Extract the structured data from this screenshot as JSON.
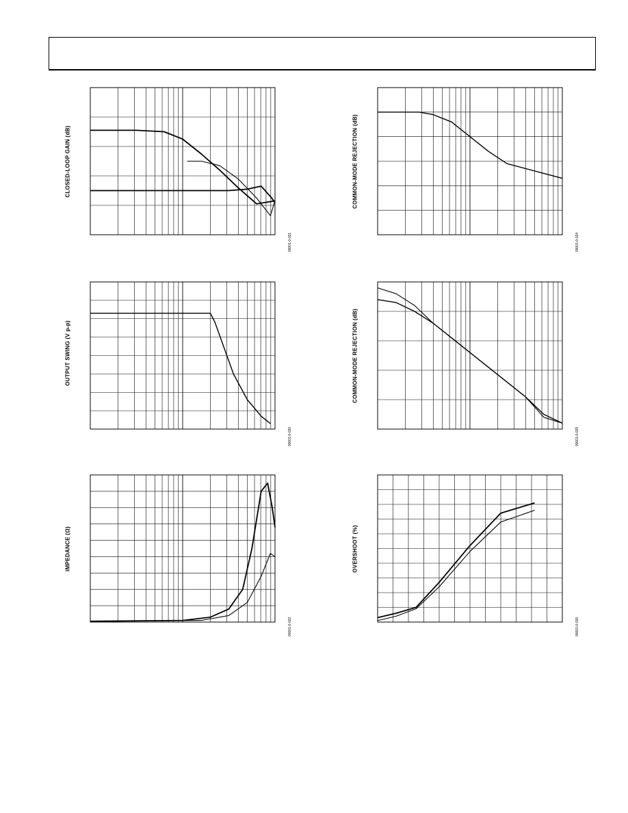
{
  "page": {
    "header_text": ""
  },
  "chart_data": [
    {
      "id": "gain",
      "type": "line",
      "ylabel": "CLOSED-LOOP GAIN (dB)",
      "fig_code": "00001-0-021",
      "xscale": "log",
      "decades": 2,
      "ylim": [
        0,
        10
      ],
      "ygrid": 5,
      "grid": true,
      "series": [
        {
          "width": 1.8,
          "x": [
            0,
            0.5,
            0.8,
            1.0,
            1.2,
            1.4,
            1.6,
            1.8,
            2.0
          ],
          "y": [
            7.1,
            7.1,
            7.0,
            6.5,
            5.5,
            4.4,
            3.2,
            2.1,
            2.3
          ]
        },
        {
          "width": 1.1,
          "x": [
            1.05,
            1.2,
            1.4,
            1.6,
            1.8,
            1.95,
            2.0
          ],
          "y": [
            5.0,
            5.0,
            4.7,
            3.8,
            2.5,
            1.3,
            2.3
          ]
        },
        {
          "width": 1.8,
          "x": [
            0,
            1.2,
            1.5,
            1.7,
            1.85,
            1.95,
            2.0
          ],
          "y": [
            3.0,
            3.0,
            3.0,
            3.1,
            3.3,
            2.6,
            2.2
          ]
        }
      ]
    },
    {
      "id": "cmrr1",
      "type": "line",
      "ylabel": "COMMON-MODE REJECTION (dB)",
      "fig_code": "00001-0-024",
      "xscale": "log",
      "decades": 2,
      "ylim": [
        0,
        6
      ],
      "ygrid": 6,
      "grid": true,
      "series": [
        {
          "width": 1.4,
          "x": [
            0,
            0.45,
            0.6,
            0.8,
            1.0,
            1.2,
            1.4,
            1.6,
            1.8,
            2.0
          ],
          "y": [
            5.0,
            5.0,
            4.9,
            4.6,
            4.0,
            3.4,
            2.9,
            2.7,
            2.5,
            2.3
          ]
        }
      ]
    },
    {
      "id": "swing",
      "type": "line",
      "ylabel": "OUTPUT SWING (V p-p)",
      "fig_code": "00001-0-020",
      "xscale": "log",
      "decades": 2,
      "ylim": [
        0,
        8
      ],
      "ygrid": 8,
      "grid": true,
      "series": [
        {
          "width": 1.4,
          "x": [
            0,
            1.3,
            1.35,
            1.45,
            1.55,
            1.7,
            1.85,
            1.95
          ],
          "y": [
            6.3,
            6.3,
            5.8,
            4.4,
            3.0,
            1.6,
            0.7,
            0.3
          ]
        }
      ]
    },
    {
      "id": "cmrr2",
      "type": "line",
      "ylabel": "COMMON-MODE REJECTION (dB)",
      "fig_code": "00001-0-025",
      "xscale": "log",
      "decades": 2,
      "ylim": [
        0,
        5
      ],
      "ygrid": 5,
      "grid": true,
      "series": [
        {
          "width": 1.1,
          "x": [
            0,
            0.2,
            0.4,
            0.6,
            0.8,
            1.0,
            1.2,
            1.4,
            1.6,
            1.8,
            2.0
          ],
          "y": [
            4.8,
            4.6,
            4.2,
            3.6,
            3.1,
            2.6,
            2.1,
            1.6,
            1.1,
            0.4,
            0.2
          ]
        },
        {
          "width": 1.4,
          "x": [
            0,
            0.2,
            0.4,
            0.6,
            0.8,
            1.0,
            1.2,
            1.4,
            1.6,
            1.8,
            2.0
          ],
          "y": [
            4.4,
            4.3,
            4.0,
            3.6,
            3.1,
            2.6,
            2.1,
            1.6,
            1.1,
            0.5,
            0.2
          ]
        }
      ]
    },
    {
      "id": "impedance",
      "type": "line",
      "ylabel": "IMPEDANCE (Ω)",
      "fig_code": "00001-0-022",
      "xscale": "log",
      "decades": 2,
      "ylim": [
        0,
        9
      ],
      "ygrid": 9,
      "grid": true,
      "series": [
        {
          "width": 1.8,
          "x": [
            0,
            1.0,
            1.3,
            1.5,
            1.65,
            1.75,
            1.85,
            1.92,
            1.97,
            2.0
          ],
          "y": [
            0.05,
            0.1,
            0.3,
            0.8,
            2.0,
            4.5,
            8.0,
            8.5,
            7.0,
            5.8
          ]
        },
        {
          "width": 1.1,
          "x": [
            0,
            1.2,
            1.5,
            1.7,
            1.85,
            1.95,
            2.0
          ],
          "y": [
            0.05,
            0.1,
            0.4,
            1.2,
            2.8,
            4.2,
            4.0
          ]
        }
      ]
    },
    {
      "id": "overshoot",
      "type": "line",
      "ylabel": "OVERSHOOT (%)",
      "fig_code": "00001-0-026",
      "xscale": "linear",
      "xgrid": 12,
      "ylim": [
        0,
        10
      ],
      "ygrid": 10,
      "grid": true,
      "series": [
        {
          "width": 1.8,
          "x": [
            0,
            1.2,
            2.5,
            4.0,
            6.0,
            8.0,
            10.2
          ],
          "y": [
            0.3,
            0.6,
            1.0,
            2.7,
            5.2,
            7.4,
            8.1
          ]
        },
        {
          "width": 1.1,
          "x": [
            0,
            1.2,
            2.5,
            4.0,
            6.0,
            8.0,
            10.2
          ],
          "y": [
            0.1,
            0.4,
            0.9,
            2.4,
            4.8,
            6.8,
            7.6
          ]
        }
      ]
    }
  ]
}
